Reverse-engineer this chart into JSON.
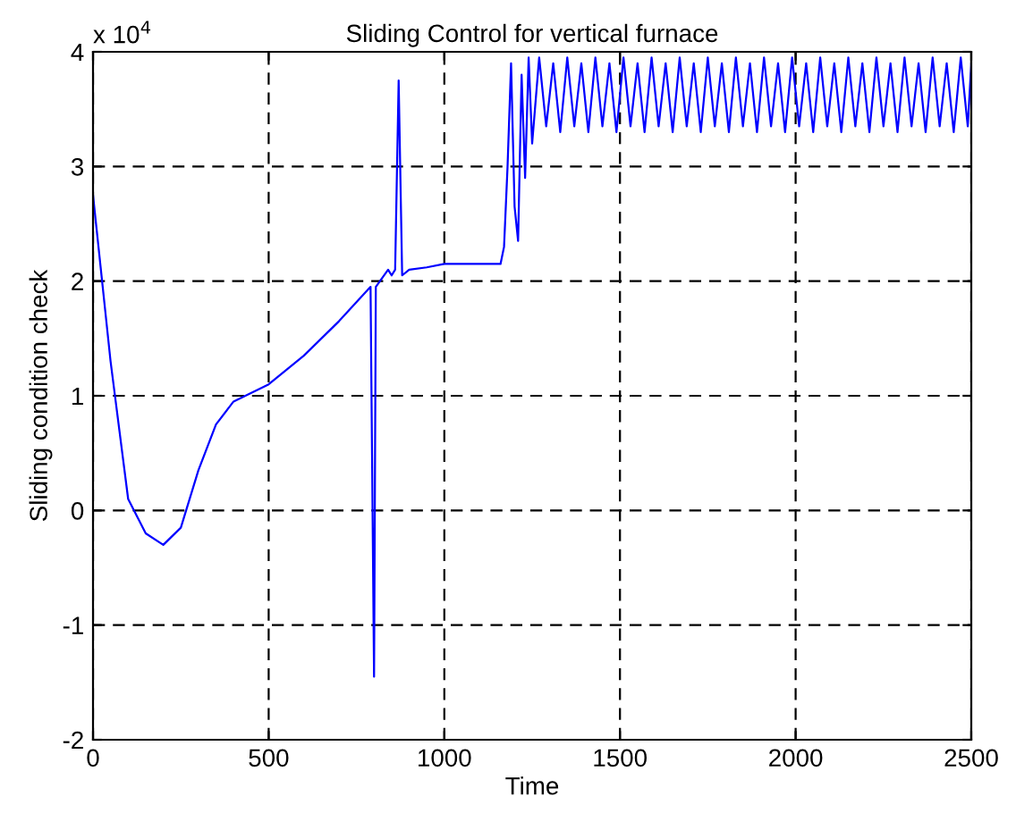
{
  "chart_data": {
    "type": "line",
    "title": "Sliding Control for vertical furnace",
    "xlabel": "Time",
    "ylabel": "Sliding condition check",
    "annotations": [
      "x 10$^{4}$"
    ],
    "xlim": [
      0,
      2500
    ],
    "xticks": [
      0,
      500,
      1000,
      1500,
      2000,
      2500
    ],
    "ylim": [
      -2,
      4
    ],
    "yticks": [
      -2,
      -1,
      0,
      1,
      2,
      3,
      4
    ],
    "grid": true,
    "line_style": "solid",
    "series": [
      {
        "color": "#0000ff",
        "x": [
          0,
          50,
          100,
          150,
          200,
          250,
          300,
          350,
          400,
          500,
          600,
          700,
          790,
          800,
          805,
          840,
          850,
          860,
          870,
          880,
          900,
          950,
          1000,
          1050,
          1100,
          1160,
          1170,
          1180,
          1190,
          1200,
          1210,
          1220,
          1230,
          1240,
          1250,
          1270,
          1290,
          1310,
          1330,
          1350,
          1370,
          1390,
          1410,
          1430,
          1450,
          1470,
          1490,
          1510,
          1530,
          1550,
          1570,
          1590,
          1610,
          1630,
          1650,
          1670,
          1690,
          1710,
          1730,
          1750,
          1770,
          1790,
          1810,
          1830,
          1850,
          1870,
          1890,
          1910,
          1930,
          1950,
          1970,
          1990,
          2010,
          2030,
          2050,
          2070,
          2090,
          2110,
          2130,
          2150,
          2170,
          2190,
          2210,
          2230,
          2250,
          2270,
          2290,
          2310,
          2330,
          2350,
          2370,
          2390,
          2410,
          2430,
          2450,
          2470,
          2490,
          2500
        ],
        "values": [
          2.75,
          1.3,
          0.1,
          -0.2,
          -0.3,
          -0.15,
          0.35,
          0.75,
          0.95,
          1.1,
          1.35,
          1.65,
          1.95,
          -1.45,
          1.95,
          2.1,
          2.05,
          2.1,
          3.75,
          2.05,
          2.1,
          2.12,
          2.15,
          2.15,
          2.15,
          2.15,
          2.3,
          3.0,
          3.9,
          2.65,
          2.35,
          3.8,
          2.9,
          3.95,
          3.2,
          3.95,
          3.35,
          3.9,
          3.3,
          3.95,
          3.35,
          3.9,
          3.3,
          3.95,
          3.35,
          3.9,
          3.3,
          3.95,
          3.35,
          3.9,
          3.3,
          3.95,
          3.35,
          3.9,
          3.3,
          3.95,
          3.35,
          3.9,
          3.3,
          3.95,
          3.35,
          3.9,
          3.3,
          3.95,
          3.35,
          3.9,
          3.3,
          3.95,
          3.35,
          3.9,
          3.3,
          3.95,
          3.35,
          3.9,
          3.3,
          3.95,
          3.35,
          3.9,
          3.3,
          3.95,
          3.35,
          3.9,
          3.3,
          3.95,
          3.35,
          3.9,
          3.3,
          3.95,
          3.35,
          3.9,
          3.3,
          3.95,
          3.35,
          3.9,
          3.3,
          3.95,
          3.35,
          3.9
        ]
      }
    ]
  }
}
